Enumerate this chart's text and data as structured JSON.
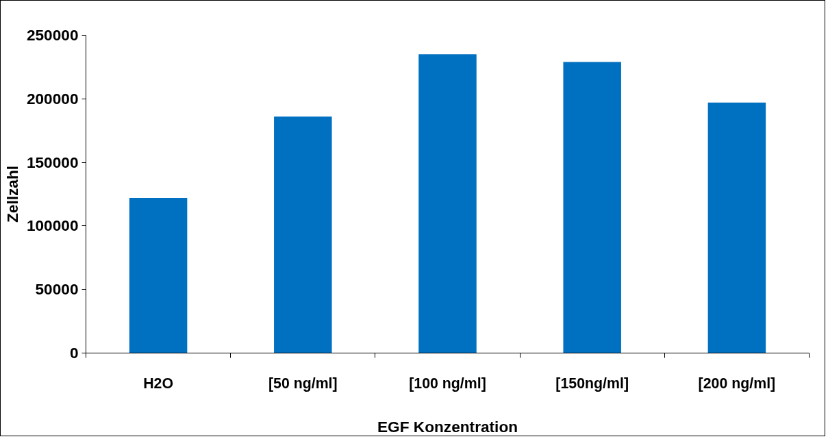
{
  "chart_data": {
    "type": "bar",
    "xlabel": "EGF Konzentration",
    "ylabel": "Zellzahl",
    "categories": [
      "H2O",
      "[50 ng/ml]",
      "[100 ng/ml]",
      "[150ng/ml]",
      "[200 ng/ml]"
    ],
    "values": [
      122000,
      186000,
      235000,
      229000,
      197000
    ],
    "color": "#0070c0",
    "ylim": [
      0,
      250000
    ],
    "yticks": [
      0,
      50000,
      100000,
      150000,
      200000,
      250000
    ],
    "grid": false
  }
}
